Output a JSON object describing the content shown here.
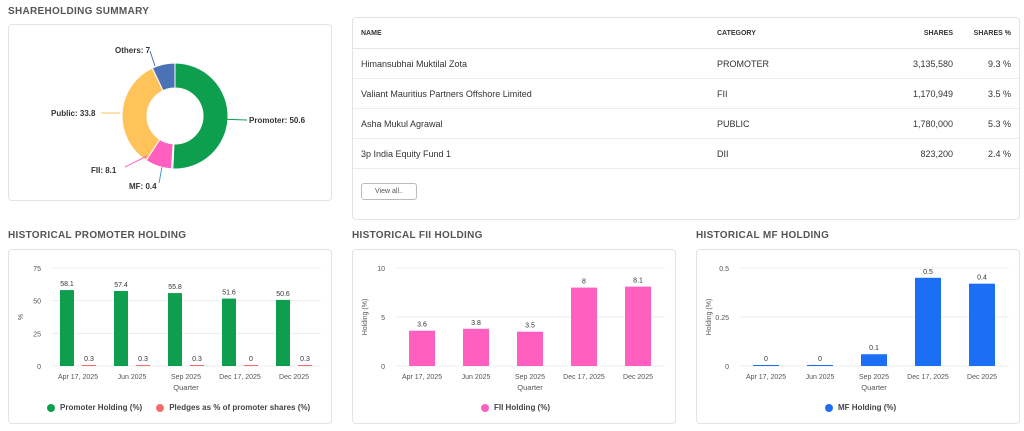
{
  "summary": {
    "title": "SHAREHOLDING SUMMARY",
    "donut": [
      {
        "label": "Promoter",
        "value": 50.6,
        "color": "#0e9f4e"
      },
      {
        "label": "MF",
        "value": 0.4,
        "color": "#4a90d9"
      },
      {
        "label": "FII",
        "value": 8.1,
        "color": "#ff5fbf"
      },
      {
        "label": "Public",
        "value": 33.8,
        "color": "#ffc35a"
      },
      {
        "label": "Others",
        "value": 7,
        "color": "#4a73b5"
      }
    ],
    "labels": {
      "promoter": "Promoter: 50.6",
      "mf": "MF: 0.4",
      "fii": "FII: 8.1",
      "public": "Public: 33.8",
      "others": "Others: 7"
    }
  },
  "table": {
    "headers": {
      "name": "NAME",
      "category": "CATEGORY",
      "shares": "SHARES",
      "pct": "SHARES %"
    },
    "rows": [
      {
        "name": "Himansubhai Muktilal Zota",
        "category": "PROMOTER",
        "shares": "3,135,580",
        "pct": "9.3 %"
      },
      {
        "name": "Valiant Mauritius Partners Offshore Limited",
        "category": "FII",
        "shares": "1,170,949",
        "pct": "3.5 %"
      },
      {
        "name": "Asha Mukul Agrawal",
        "category": "PUBLIC",
        "shares": "1,780,000",
        "pct": "5.3 %"
      },
      {
        "name": "3p India Equity Fund 1",
        "category": "DII",
        "shares": "823,200",
        "pct": "2.4 %"
      }
    ],
    "view_all": "View all.."
  },
  "titles": {
    "promoter": "HISTORICAL PROMOTER HOLDING",
    "fii": "HISTORICAL FII HOLDING",
    "mf": "HISTORICAL MF HOLDING"
  },
  "chart_data": [
    {
      "type": "bar",
      "title": "HISTORICAL PROMOTER HOLDING",
      "categories": [
        "Apr 17, 2025",
        "Jun 2025",
        "Sep 2025",
        "Dec 17, 2025",
        "Dec 2025"
      ],
      "series": [
        {
          "name": "Promoter Holding (%)",
          "values": [
            58.1,
            57.4,
            55.8,
            51.6,
            50.6
          ],
          "color": "#0e9f4e"
        },
        {
          "name": "Pledges as % of promoter shares (%)",
          "values": [
            0.3,
            0.3,
            0.3,
            0,
            0.3
          ],
          "color": "#f46d6d"
        }
      ],
      "value_labels": [
        [
          "58.1",
          "57.4",
          "55.8",
          "51.6",
          "50.6"
        ],
        [
          "0.3",
          "0.3",
          "0.3",
          "0",
          "0.3"
        ]
      ],
      "xlabel": "Quarter",
      "ylabel": "%",
      "ylim": [
        0,
        75
      ],
      "yticks": [
        "0",
        "25",
        "50",
        "75"
      ],
      "ytick_values": [
        0,
        25,
        50,
        75
      ],
      "grid": true,
      "legend": "bottom"
    },
    {
      "type": "bar",
      "title": "HISTORICAL FII HOLDING",
      "categories": [
        "Apr 17, 2025",
        "Jun 2025",
        "Sep 2025",
        "Dec 17, 2025",
        "Dec 2025"
      ],
      "series": [
        {
          "name": "FII Holding (%)",
          "values": [
            3.6,
            3.8,
            3.5,
            8,
            8.1
          ],
          "color": "#ff5fbf"
        }
      ],
      "value_labels": [
        [
          "3.6",
          "3.8",
          "3.5",
          "8",
          "8.1"
        ]
      ],
      "xlabel": "Quarter",
      "ylabel": "Holding (%)",
      "ylim": [
        0,
        10
      ],
      "yticks": [
        "0",
        "5",
        "10"
      ],
      "ytick_values": [
        0,
        5,
        10
      ],
      "grid": true,
      "legend": "bottom"
    },
    {
      "type": "bar",
      "title": "HISTORICAL MF HOLDING",
      "categories": [
        "Apr 17, 2025",
        "Jun 2025",
        "Sep 2025",
        "Dec 17, 2025",
        "Dec 2025"
      ],
      "series": [
        {
          "name": "MF Holding (%)",
          "values": [
            0,
            0,
            0.06,
            0.45,
            0.42
          ],
          "color": "#1a6ff5"
        }
      ],
      "value_labels": [
        [
          "0",
          "0",
          "0.1",
          "0.5",
          "0.4"
        ]
      ],
      "xlabel": "Quarter",
      "ylabel": "Holding (%)",
      "ylim": [
        0,
        0.5
      ],
      "yticks": [
        "0",
        "0.25",
        "0.5"
      ],
      "ytick_values": [
        0,
        0.25,
        0.5
      ],
      "grid": true,
      "legend": "bottom"
    }
  ]
}
